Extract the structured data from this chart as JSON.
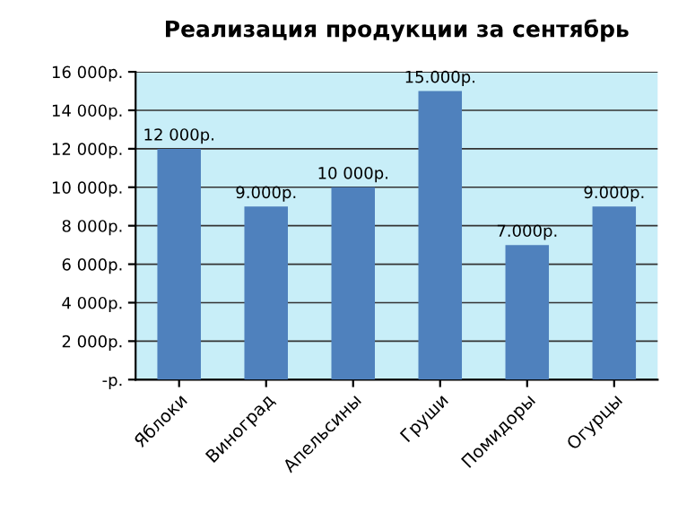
{
  "chart_data": {
    "type": "bar",
    "title": "Реализация продукции за сентябрь",
    "categories": [
      "Яблоки",
      "Виноград",
      "Апельсины",
      "Груши",
      "Помидоры",
      "Огурцы"
    ],
    "values": [
      12000,
      9000,
      10000,
      15000,
      7000,
      9000
    ],
    "value_labels": [
      "12 000р.",
      "9.000р.",
      "10 000р.",
      "15.000р.",
      "7.000р.",
      "9.000р."
    ],
    "color": "#4f81bd",
    "ylim": [
      0,
      16000
    ],
    "yticks": [
      {
        "value": 0,
        "label": "-р."
      },
      {
        "value": 2000,
        "label": "2 000р."
      },
      {
        "value": 4000,
        "label": "4 000р."
      },
      {
        "value": 6000,
        "label": "6 000р."
      },
      {
        "value": 8000,
        "label": "8 000р."
      },
      {
        "value": 10000,
        "label": "10 000р."
      },
      {
        "value": 12000,
        "label": "12 000р."
      },
      {
        "value": 14000,
        "label": "14 000р."
      },
      {
        "value": 16000,
        "label": "16 000р."
      }
    ],
    "grid": "y",
    "legend": false
  }
}
